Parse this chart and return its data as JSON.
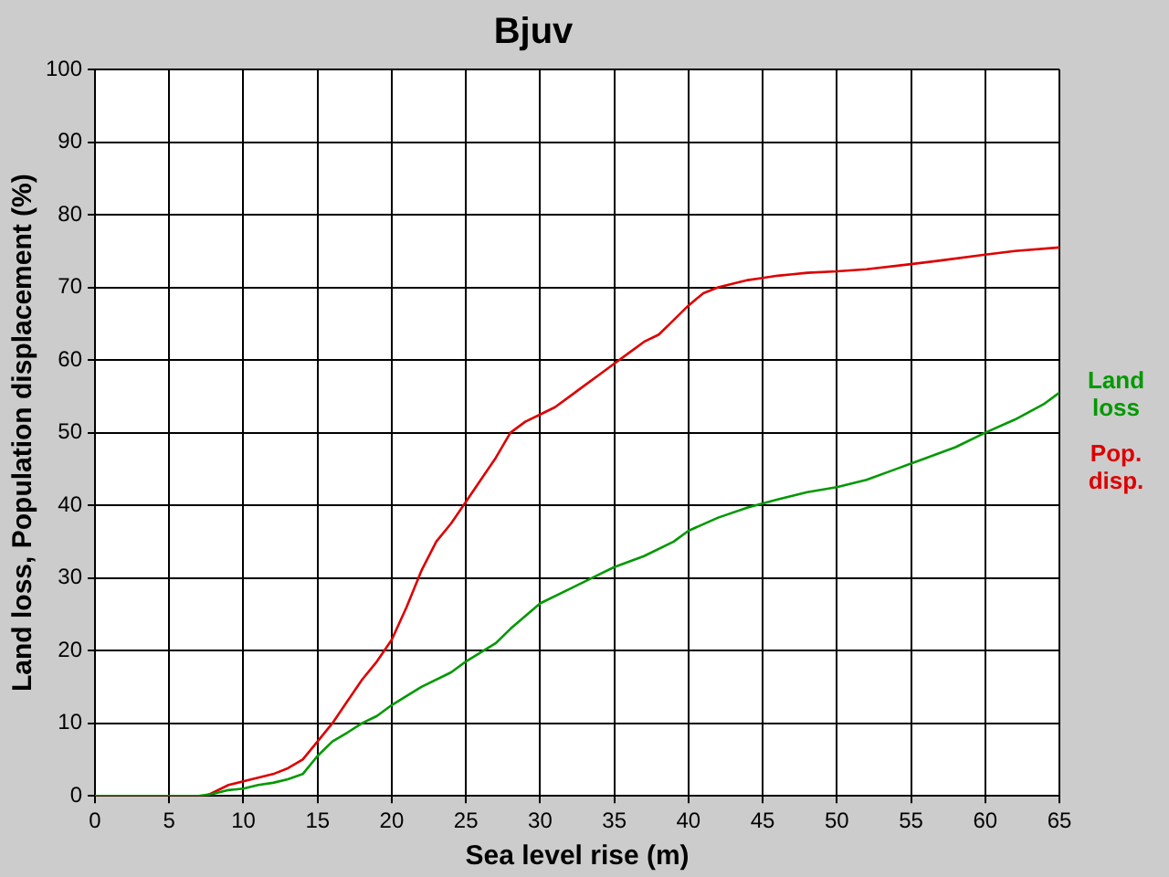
{
  "chart_data": {
    "type": "line",
    "title": "Bjuv",
    "xlabel": "Sea level rise (m)",
    "ylabel": "Land loss, Population displacement (%)",
    "xlim": [
      0,
      65
    ],
    "xticks": [
      0,
      5,
      10,
      15,
      20,
      25,
      30,
      35,
      40,
      45,
      50,
      55,
      60,
      65
    ],
    "ylim": [
      0,
      100
    ],
    "yticks": [
      0,
      10,
      20,
      30,
      40,
      50,
      60,
      70,
      80,
      90,
      100
    ],
    "grid": true,
    "legend": "right",
    "marker": "none",
    "line_style": "solid",
    "series": [
      {
        "name": "Land loss",
        "color": "#009900",
        "x": [
          0,
          7,
          8,
          9,
          10,
          11,
          12,
          13,
          14,
          15,
          16,
          17,
          18,
          19,
          20,
          22,
          24,
          25,
          27,
          28,
          30,
          32,
          34,
          35,
          37,
          39,
          40,
          42,
          44,
          46,
          48,
          50,
          52,
          54,
          56,
          58,
          60,
          62,
          64,
          65
        ],
        "values": [
          0,
          0,
          0.3,
          0.8,
          1,
          1.5,
          1.8,
          2.3,
          3,
          5.5,
          7.5,
          8.7,
          10,
          11,
          12.5,
          15,
          17,
          18.5,
          21,
          23,
          26.5,
          28.5,
          30.5,
          31.5,
          33,
          35,
          36.5,
          38.3,
          39.7,
          40.8,
          41.8,
          42.5,
          43.5,
          45,
          46.5,
          48,
          50,
          51.8,
          54,
          55.5
        ]
      },
      {
        "name": "Pop. disp.",
        "color": "#dd0000",
        "x": [
          0,
          7.5,
          8,
          9,
          10,
          11,
          12,
          13,
          14,
          15,
          16,
          17,
          18,
          19,
          20,
          21,
          22,
          23,
          24,
          25,
          26,
          27,
          28,
          29,
          30,
          31,
          32,
          33,
          34,
          35,
          36,
          37,
          38,
          39,
          40,
          41,
          42,
          43,
          44,
          45,
          46,
          47,
          48,
          50,
          52,
          55,
          57,
          60,
          62,
          65
        ],
        "values": [
          0,
          0,
          0.5,
          1.5,
          2,
          2.5,
          3,
          3.8,
          5,
          7.5,
          10,
          13,
          16,
          18.5,
          21.5,
          26,
          31,
          35,
          37.5,
          40.5,
          43.5,
          46.5,
          50,
          51.5,
          52.5,
          53.5,
          55,
          56.5,
          58,
          59.5,
          61,
          62.5,
          63.5,
          65.5,
          67.5,
          69.2,
          70,
          70.5,
          71,
          71.3,
          71.6,
          71.8,
          72,
          72.2,
          72.5,
          73.2,
          73.7,
          74.5,
          75,
          75.5
        ]
      }
    ]
  }
}
